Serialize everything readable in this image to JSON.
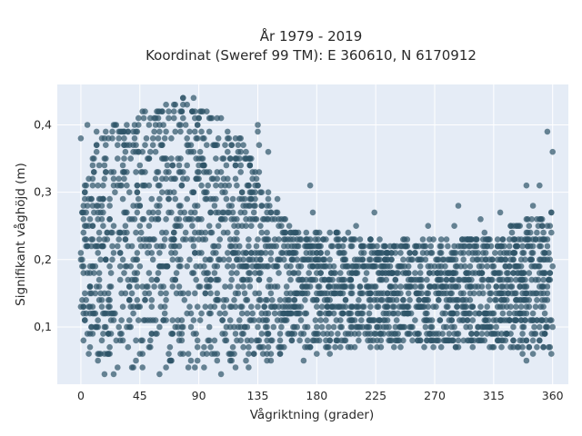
{
  "chart_data": {
    "type": "scatter",
    "title": "År 1979 - 2019",
    "subtitle": "Koordinat (Sweref 99 TM): E 360610, N 6170912",
    "xlabel": "Vågriktning (grader)",
    "ylabel": "Signifikant våghöjd (m)",
    "xlim": [
      -18,
      372
    ],
    "ylim": [
      0.015,
      0.46
    ],
    "x_ticks": [
      0,
      45,
      90,
      135,
      180,
      225,
      270,
      315,
      360
    ],
    "x_tick_labels": [
      "0",
      "45",
      "90",
      "135",
      "180",
      "225",
      "270",
      "315",
      "360"
    ],
    "y_ticks": [
      0.1,
      0.2,
      0.3,
      0.4
    ],
    "y_tick_labels": [
      "0,1",
      "0,2",
      "0,3",
      "0,4"
    ],
    "grid": true,
    "legend": "none",
    "colors": {
      "plot_background": "#e5ecf6",
      "marker": "#2e5468",
      "gridline": "#ffffff"
    },
    "envelope": [
      {
        "x": 0,
        "ymin": 0.06,
        "ymax": 0.3
      },
      {
        "x": 10,
        "ymin": 0.05,
        "ymax": 0.36
      },
      {
        "x": 20,
        "ymin": 0.05,
        "ymax": 0.4
      },
      {
        "x": 30,
        "ymin": 0.04,
        "ymax": 0.41
      },
      {
        "x": 45,
        "ymin": 0.04,
        "ymax": 0.42
      },
      {
        "x": 60,
        "ymin": 0.04,
        "ymax": 0.43
      },
      {
        "x": 70,
        "ymin": 0.04,
        "ymax": 0.44
      },
      {
        "x": 90,
        "ymin": 0.04,
        "ymax": 0.44
      },
      {
        "x": 100,
        "ymin": 0.04,
        "ymax": 0.42
      },
      {
        "x": 115,
        "ymin": 0.04,
        "ymax": 0.4
      },
      {
        "x": 125,
        "ymin": 0.04,
        "ymax": 0.37
      },
      {
        "x": 135,
        "ymin": 0.05,
        "ymax": 0.33
      },
      {
        "x": 145,
        "ymin": 0.05,
        "ymax": 0.29
      },
      {
        "x": 155,
        "ymin": 0.06,
        "ymax": 0.26
      },
      {
        "x": 170,
        "ymin": 0.07,
        "ymax": 0.24
      },
      {
        "x": 200,
        "ymin": 0.07,
        "ymax": 0.24
      },
      {
        "x": 230,
        "ymin": 0.07,
        "ymax": 0.23
      },
      {
        "x": 260,
        "ymin": 0.07,
        "ymax": 0.23
      },
      {
        "x": 290,
        "ymin": 0.07,
        "ymax": 0.23
      },
      {
        "x": 320,
        "ymin": 0.07,
        "ymax": 0.24
      },
      {
        "x": 340,
        "ymin": 0.06,
        "ymax": 0.26
      },
      {
        "x": 360,
        "ymin": 0.06,
        "ymax": 0.27
      }
    ],
    "outliers": [
      {
        "x": 0,
        "y": 0.38
      },
      {
        "x": 5,
        "y": 0.4
      },
      {
        "x": 12,
        "y": 0.39
      },
      {
        "x": 18,
        "y": 0.03
      },
      {
        "x": 25,
        "y": 0.03
      },
      {
        "x": 40,
        "y": 0.04
      },
      {
        "x": 60,
        "y": 0.03
      },
      {
        "x": 82,
        "y": 0.04
      },
      {
        "x": 107,
        "y": 0.03
      },
      {
        "x": 128,
        "y": 0.04
      },
      {
        "x": 135,
        "y": 0.4
      },
      {
        "x": 135,
        "y": 0.39
      },
      {
        "x": 136,
        "y": 0.37
      },
      {
        "x": 143,
        "y": 0.36
      },
      {
        "x": 150,
        "y": 0.29
      },
      {
        "x": 165,
        "y": 0.22
      },
      {
        "x": 170,
        "y": 0.05
      },
      {
        "x": 175,
        "y": 0.31
      },
      {
        "x": 177,
        "y": 0.27
      },
      {
        "x": 180,
        "y": 0.06
      },
      {
        "x": 190,
        "y": 0.06
      },
      {
        "x": 210,
        "y": 0.25
      },
      {
        "x": 224,
        "y": 0.27
      },
      {
        "x": 265,
        "y": 0.25
      },
      {
        "x": 285,
        "y": 0.25
      },
      {
        "x": 288,
        "y": 0.28
      },
      {
        "x": 305,
        "y": 0.26
      },
      {
        "x": 320,
        "y": 0.27
      },
      {
        "x": 330,
        "y": 0.25
      },
      {
        "x": 340,
        "y": 0.31
      },
      {
        "x": 345,
        "y": 0.28
      },
      {
        "x": 350,
        "y": 0.31
      },
      {
        "x": 356,
        "y": 0.39
      },
      {
        "x": 360,
        "y": 0.36
      },
      {
        "x": 340,
        "y": 0.05
      },
      {
        "x": 345,
        "y": 0.06
      }
    ]
  }
}
